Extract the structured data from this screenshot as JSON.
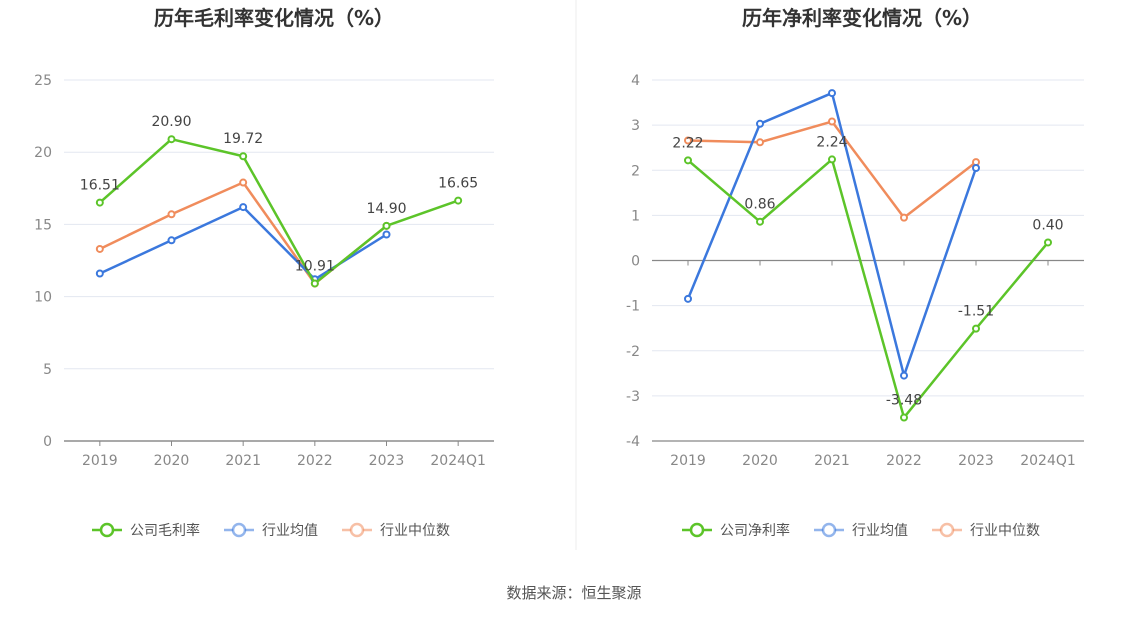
{
  "source": "数据来源：恒生聚源",
  "chart_data": [
    {
      "type": "line",
      "title": "历年毛利率变化情况（%）",
      "categories": [
        "2019",
        "2020",
        "2021",
        "2022",
        "2023",
        "2024Q1"
      ],
      "ylim": [
        0,
        25
      ],
      "yticks": [
        0,
        5,
        10,
        15,
        20,
        25
      ],
      "grid": true,
      "legend_position": "bottom",
      "series": [
        {
          "name": "公司毛利率",
          "color": "#5cc429",
          "values": [
            16.51,
            20.9,
            19.72,
            10.91,
            14.9,
            16.65
          ],
          "labels": [
            "16.51",
            "20.90",
            "19.72",
            "10.91",
            "14.90",
            "16.65"
          ]
        },
        {
          "name": "行业均值",
          "color": "#3b78dd",
          "values": [
            11.6,
            13.9,
            16.2,
            11.2,
            14.3,
            null
          ]
        },
        {
          "name": "行业中位数",
          "color": "#f08c5c",
          "values": [
            13.3,
            15.7,
            17.9,
            10.9,
            14.9,
            null
          ]
        }
      ]
    },
    {
      "type": "line",
      "title": "历年净利率变化情况（%）",
      "categories": [
        "2019",
        "2020",
        "2021",
        "2022",
        "2023",
        "2024Q1"
      ],
      "ylim": [
        -4,
        4
      ],
      "yticks": [
        -4,
        -3,
        -2,
        -1,
        0,
        1,
        2,
        3,
        4
      ],
      "grid": true,
      "legend_position": "bottom",
      "series": [
        {
          "name": "公司净利率",
          "color": "#5cc429",
          "values": [
            2.22,
            0.86,
            2.24,
            -3.48,
            -1.51,
            0.4
          ],
          "labels": [
            "2.22",
            "0.86",
            "2.24",
            "-3.48",
            "-1.51",
            "0.40"
          ]
        },
        {
          "name": "行业均值",
          "color": "#3b78dd",
          "values": [
            -0.85,
            3.03,
            3.71,
            -2.55,
            2.05,
            null
          ]
        },
        {
          "name": "行业中位数",
          "color": "#f08c5c",
          "values": [
            2.66,
            2.62,
            3.08,
            0.95,
            2.18,
            null
          ]
        }
      ]
    }
  ]
}
